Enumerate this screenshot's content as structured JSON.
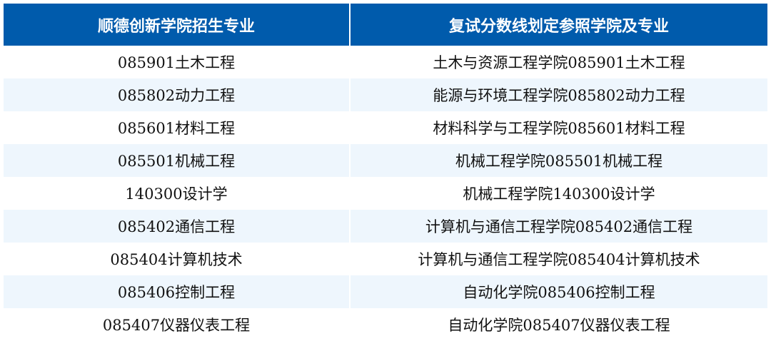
{
  "colors": {
    "header_bg": "#005bac",
    "stripe_bg": "#eef6fd"
  },
  "headers": [
    "顺德创新学院招生专业",
    "复试分数线划定参照学院及专业"
  ],
  "rows": [
    [
      "085901土木工程",
      "土木与资源工程学院085901土木工程"
    ],
    [
      "085802动力工程",
      "能源与环境工程学院085802动力工程"
    ],
    [
      "085601材料工程",
      "材料科学与工程学院085601材料工程"
    ],
    [
      "085501机械工程",
      "机械工程学院085501机械工程"
    ],
    [
      "140300设计学",
      "机械工程学院140300设计学"
    ],
    [
      "085402通信工程",
      "计算机与通信工程学院085402通信工程"
    ],
    [
      "085404计算机技术",
      "计算机与通信工程学院085404计算机技术"
    ],
    [
      "085406控制工程",
      "自动化学院085406控制工程"
    ],
    [
      "085407仪器仪表工程",
      "自动化学院085407仪器仪表工程"
    ]
  ]
}
